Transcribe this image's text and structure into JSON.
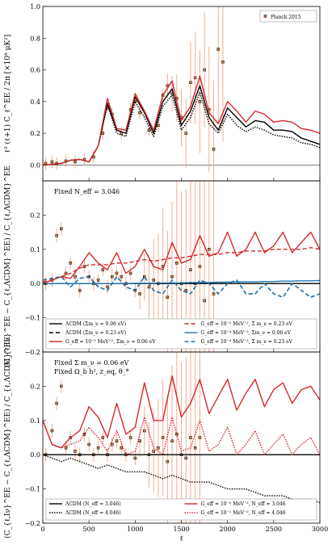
{
  "chart_data": [
    {
      "type": "line",
      "panel": "top",
      "ylabel": "ℓ³ (ℓ+1) C_ℓ^EE / 2π  [×10⁸ μK²]",
      "ylim": [
        -0.1,
        1.0
      ],
      "xlim": [
        0,
        3000
      ],
      "yticks": [
        "0.0",
        "0.2",
        "0.4",
        "0.6",
        "0.8",
        "1.0"
      ],
      "legend": {
        "position": "top-right",
        "entries": [
          "Planck 2015"
        ]
      },
      "x": [
        0,
        100,
        200,
        300,
        400,
        500,
        600,
        700,
        800,
        900,
        1000,
        1100,
        1200,
        1300,
        1400,
        1500,
        1600,
        1700,
        1800,
        1900,
        2000,
        2100,
        2200,
        2300,
        2400,
        2500,
        2600,
        2700,
        2800,
        2900,
        3000
      ],
      "series": [
        {
          "name": "ΛCDM (Σm_ν = 0.06 eV)",
          "color": "#000000",
          "dash": "solid",
          "values": [
            0,
            0.005,
            0.01,
            0.03,
            0.035,
            0.02,
            0.12,
            0.39,
            0.22,
            0.2,
            0.43,
            0.33,
            0.2,
            0.4,
            0.48,
            0.25,
            0.34,
            0.5,
            0.3,
            0.22,
            0.36,
            0.3,
            0.24,
            0.28,
            0.27,
            0.22,
            0.22,
            0.21,
            0.17,
            0.15,
            0.13
          ]
        },
        {
          "name": "ΛCDM (Σm_ν = 0.23 eV)",
          "color": "#000000",
          "dash": "dotted",
          "values": [
            0,
            0.005,
            0.01,
            0.03,
            0.035,
            0.02,
            0.12,
            0.38,
            0.2,
            0.18,
            0.4,
            0.3,
            0.18,
            0.37,
            0.44,
            0.22,
            0.3,
            0.46,
            0.26,
            0.2,
            0.32,
            0.25,
            0.21,
            0.24,
            0.22,
            0.19,
            0.18,
            0.17,
            0.14,
            0.13,
            0.11
          ]
        },
        {
          "name": "G_eff = 10⁻² MeV⁻², Σm_ν = 0.06 eV",
          "color": "#d62728",
          "dash": "solid",
          "values": [
            0,
            0.005,
            0.01,
            0.03,
            0.035,
            0.02,
            0.12,
            0.42,
            0.23,
            0.22,
            0.45,
            0.34,
            0.22,
            0.44,
            0.53,
            0.28,
            0.37,
            0.56,
            0.33,
            0.26,
            0.4,
            0.34,
            0.27,
            0.34,
            0.32,
            0.27,
            0.28,
            0.27,
            0.23,
            0.22,
            0.2
          ]
        }
      ],
      "observations": {
        "name": "Planck 2015",
        "x": [
          30,
          100,
          150,
          250,
          350,
          450,
          550,
          650,
          700,
          750,
          850,
          950,
          1000,
          1050,
          1150,
          1250,
          1300,
          1350,
          1400,
          1450,
          1500,
          1550,
          1600,
          1650,
          1700,
          1750,
          1800,
          1850,
          1900,
          1950
        ],
        "y": [
          0.01,
          0.02,
          0.01,
          0.025,
          0.02,
          0.035,
          0.05,
          0.2,
          0.36,
          0.32,
          0.2,
          0.35,
          0.4,
          0.33,
          0.22,
          0.25,
          0.44,
          0.5,
          0.45,
          0.42,
          0.3,
          0.2,
          0.52,
          0.55,
          0.4,
          0.6,
          0.35,
          0.1,
          0.73,
          0.65
        ]
      }
    },
    {
      "type": "line",
      "panel": "middle",
      "ylabel": "(C_{ℓ,Iν}^EE − C_{ℓ,ΛCDM}^EE) / C_{ℓ,ΛCDM}^EE",
      "ylim": [
        -0.2,
        0.3
      ],
      "xlim": [
        0,
        3000
      ],
      "yticks": [
        "−0.2",
        "−0.1",
        "0.0",
        "0.1",
        "0.2"
      ],
      "annotation": "Fixed N_eff = 3.046",
      "legend": {
        "position": "bottom",
        "entries": [
          {
            "label": "ΛCDM (Σm_ν = 0.06 eV)",
            "color": "#000000",
            "dash": "solid"
          },
          {
            "label": "ΛCDM (Σm_ν = 0.23 eV)",
            "color": "#000000",
            "dash": "dashed"
          },
          {
            "label": "G_eff = 10⁻² MeV⁻², Σm_ν = 0.06 eV",
            "color": "#d62728",
            "dash": "solid"
          },
          {
            "label": "G_eff = 10⁻² MeV⁻², Σ m_ν = 0.23 eV",
            "color": "#d62728",
            "dash": "dashed"
          },
          {
            "label": "G_eff = 10⁻⁴ MeV⁻², Σm_ν = 0.06 eV",
            "color": "#1f77b4",
            "dash": "solid"
          },
          {
            "label": "G_eff = 10⁻⁴ MeV⁻², Σ m_ν = 0.23 eV",
            "color": "#1f77b4",
            "dash": "dashed"
          }
        ]
      },
      "x": [
        0,
        100,
        200,
        300,
        400,
        500,
        600,
        700,
        800,
        900,
        1000,
        1100,
        1200,
        1300,
        1400,
        1500,
        1600,
        1700,
        1800,
        1900,
        2000,
        2100,
        2200,
        2300,
        2400,
        2500,
        2600,
        2700,
        2800,
        2900,
        3000
      ],
      "series": [
        {
          "name": "ΛCDM (Σm_ν = 0.06 eV)",
          "color": "#000000",
          "dash": "solid",
          "values": [
            0,
            0,
            0,
            0,
            0,
            0,
            0,
            0,
            0,
            0,
            0,
            0,
            0,
            0,
            0,
            0,
            0,
            0,
            0,
            0,
            0,
            0,
            0,
            0,
            0,
            0,
            0,
            0,
            0,
            0,
            0
          ]
        },
        {
          "name": "ΛCDM (Σm_ν = 0.23 eV)",
          "color": "#000000",
          "dash": "dashed",
          "values": [
            0.01,
            0.015,
            0.02,
            -0.01,
            0.015,
            0.02,
            -0.01,
            -0.02,
            0.02,
            -0.01,
            -0.02,
            0.02,
            -0.02,
            -0.03,
            0.01,
            -0.02,
            -0.03,
            0.01,
            0.0,
            -0.03,
            0.0,
            0.01,
            -0.03,
            -0.03,
            0.0,
            -0.03,
            -0.04,
            0.0,
            -0.02,
            -0.04,
            -0.03
          ]
        },
        {
          "name": "G_eff = 10⁻² MeV⁻², Σm_ν = 0.06 eV",
          "color": "#d62728",
          "dash": "solid",
          "values": [
            0.0,
            0.01,
            0.02,
            0.015,
            0.05,
            0.09,
            0.06,
            0.04,
            0.09,
            0.03,
            0.05,
            0.1,
            0.05,
            0.04,
            0.12,
            0.06,
            0.07,
            0.14,
            0.08,
            0.09,
            0.15,
            0.08,
            0.1,
            0.15,
            0.09,
            0.11,
            0.15,
            0.09,
            0.12,
            0.15,
            0.1
          ]
        },
        {
          "name": "G_eff = 10⁻² MeV⁻², Σ m_ν = 0.23 eV",
          "color": "#d62728",
          "dash": "dashed",
          "values": [
            0.005,
            0.01,
            0.02,
            0.03,
            0.045,
            0.055,
            0.055,
            0.055,
            0.06,
            0.06,
            0.065,
            0.07,
            0.065,
            0.07,
            0.075,
            0.075,
            0.08,
            0.085,
            0.085,
            0.085,
            0.09,
            0.09,
            0.095,
            0.095,
            0.095,
            0.1,
            0.1,
            0.1,
            0.1,
            0.105,
            0.1
          ]
        },
        {
          "name": "G_eff = 10⁻⁴ MeV⁻², Σm_ν = 0.06 eV",
          "color": "#1f77b4",
          "dash": "solid",
          "values": [
            0,
            0,
            0,
            0,
            0,
            0,
            0,
            0,
            0,
            0,
            0.001,
            0.001,
            0.001,
            0.002,
            0.002,
            0.002,
            0.003,
            0.003,
            0.003,
            0.004,
            0.004,
            0.005,
            0.005,
            0.005,
            0.006,
            0.006,
            0.007,
            0.007,
            0.008,
            0.008,
            0.009
          ]
        },
        {
          "name": "G_eff = 10⁻⁴ MeV⁻², Σ m_ν = 0.23 eV",
          "color": "#1f77b4",
          "dash": "dashed",
          "values": [
            0.01,
            0.015,
            0.02,
            -0.01,
            0.015,
            0.02,
            -0.01,
            -0.02,
            0.02,
            -0.01,
            -0.02,
            0.02,
            -0.02,
            -0.03,
            0.01,
            -0.02,
            -0.03,
            0.01,
            0.0,
            -0.03,
            0.0,
            0.01,
            -0.03,
            -0.03,
            0.0,
            -0.03,
            -0.04,
            0.0,
            -0.02,
            -0.04,
            -0.03
          ]
        }
      ],
      "observations": {
        "name": "Planck 2015",
        "x": [
          30,
          100,
          150,
          200,
          250,
          300,
          350,
          400,
          450,
          500,
          550,
          600,
          650,
          700,
          750,
          800,
          850,
          900,
          950,
          1000,
          1050,
          1100,
          1150,
          1200,
          1250,
          1300,
          1350,
          1400,
          1450,
          1500,
          1550,
          1600,
          1650,
          1700,
          1750,
          1800,
          1850
        ],
        "y": [
          0.0,
          0.01,
          0.14,
          0.16,
          0.03,
          0.06,
          0.02,
          -0.02,
          0.05,
          0.02,
          0.0,
          0.01,
          0.04,
          -0.01,
          0.02,
          0.03,
          0.02,
          0.0,
          0.03,
          -0.02,
          -0.03,
          0.02,
          -0.01,
          0.01,
          0.0,
          0.05,
          -0.04,
          0.02,
          0.06,
          0.0,
          -0.02,
          0.04,
          0.0,
          0.05,
          -0.05,
          0.1,
          -0.03
        ]
      }
    },
    {
      "type": "line",
      "panel": "bottom",
      "xlabel": "ℓ",
      "ylabel": "(C_{ℓ,Iν}^EE − C_{ℓ,ΛCDM}^EE) / C_{ℓ,ΛCDM}^EE",
      "ylim": [
        -0.2,
        0.3
      ],
      "xlim": [
        0,
        3000
      ],
      "xticks": [
        "0",
        "500",
        "1000",
        "1500",
        "2000",
        "2500",
        "3000"
      ],
      "yticks": [
        "−0.2",
        "−0.1",
        "0.0",
        "0.1",
        "0.2"
      ],
      "annotation": [
        "Fixed Σ m_ν = 0.06 eV",
        "Fixed Ω_b h², z_eq, θ_*"
      ],
      "legend": {
        "position": "bottom",
        "entries": [
          {
            "label": "ΛCDM (N_eff = 3.046)",
            "color": "#000000",
            "dash": "solid"
          },
          {
            "label": "ΛCDM (N_eff = 4.046)",
            "color": "#000000",
            "dash": "dotted"
          },
          {
            "label": "G_eff = 10⁻² MeV⁻², N_eff = 3.046",
            "color": "#d62728",
            "dash": "solid"
          },
          {
            "label": "G_eff = 10⁻² MeV⁻², N_eff = 4.046",
            "color": "#d62728",
            "dash": "dotted"
          }
        ]
      },
      "x": [
        0,
        100,
        200,
        300,
        400,
        500,
        600,
        700,
        800,
        900,
        1000,
        1100,
        1200,
        1300,
        1400,
        1500,
        1600,
        1700,
        1800,
        1900,
        2000,
        2100,
        2200,
        2300,
        2400,
        2500,
        2600,
        2700,
        2800,
        2900,
        3000
      ],
      "series": [
        {
          "name": "ΛCDM (N_eff = 3.046)",
          "color": "#000000",
          "dash": "solid",
          "values": [
            0,
            0,
            0,
            0,
            0,
            0,
            0,
            0,
            0,
            0,
            0,
            0,
            0,
            0,
            0,
            0,
            0,
            0,
            0,
            0,
            0,
            0,
            0,
            0,
            0,
            0,
            0,
            0,
            0,
            0,
            0
          ]
        },
        {
          "name": "ΛCDM (N_eff = 4.046)",
          "color": "#000000",
          "dash": "dotted",
          "values": [
            0.0,
            -0.01,
            -0.02,
            -0.01,
            -0.02,
            -0.03,
            -0.04,
            -0.03,
            -0.04,
            -0.05,
            -0.05,
            -0.05,
            -0.06,
            -0.07,
            -0.06,
            -0.07,
            -0.08,
            -0.08,
            -0.08,
            -0.09,
            -0.1,
            -0.1,
            -0.1,
            -0.11,
            -0.12,
            -0.12,
            -0.12,
            -0.13,
            -0.13,
            -0.13,
            -0.14
          ]
        },
        {
          "name": "G_eff = 10⁻² MeV⁻², N_eff = 3.046",
          "color": "#d62728",
          "dash": "solid",
          "values": [
            0.1,
            0.03,
            0.02,
            0.05,
            0.07,
            0.14,
            0.11,
            0.05,
            0.15,
            0.06,
            0.08,
            0.21,
            0.1,
            0.1,
            0.23,
            0.11,
            0.15,
            0.22,
            0.12,
            0.17,
            0.22,
            0.13,
            0.18,
            0.22,
            0.14,
            0.19,
            0.21,
            0.15,
            0.19,
            0.2,
            0.16
          ]
        },
        {
          "name": "G_eff = 10⁻² MeV⁻², N_eff = 4.046",
          "color": "#d62728",
          "dash": "dotted",
          "values": [
            0.1,
            0.03,
            0.02,
            0.03,
            0.04,
            0.08,
            0.05,
            0.01,
            0.07,
            0.0,
            0.01,
            0.11,
            0.02,
            0.0,
            0.11,
            0.01,
            0.02,
            0.1,
            0.01,
            0.03,
            0.08,
            0.0,
            0.03,
            0.07,
            0.0,
            0.03,
            0.06,
            0.0,
            0.03,
            0.05,
            0.0
          ]
        }
      ],
      "observations": {
        "name": "Planck 2015",
        "x": [
          30,
          100,
          150,
          200,
          250,
          300,
          350,
          400,
          450,
          500,
          550,
          600,
          650,
          700,
          750,
          800,
          850,
          900,
          950,
          1000,
          1050,
          1100,
          1150,
          1200,
          1250,
          1300,
          1350,
          1400,
          1450,
          1500,
          1550,
          1600,
          1650,
          1700
        ],
        "y": [
          0.0,
          0.07,
          0.15,
          0.2,
          0.02,
          0.05,
          0.01,
          0.0,
          0.06,
          0.03,
          0.0,
          0.02,
          0.05,
          0.0,
          0.03,
          0.04,
          0.02,
          0.0,
          0.05,
          -0.01,
          0.04,
          0.07,
          0.0,
          0.01,
          0.02,
          0.05,
          -0.02,
          0.04,
          0.06,
          0.0,
          -0.01,
          0.05,
          0.02,
          0.05
        ]
      }
    }
  ]
}
